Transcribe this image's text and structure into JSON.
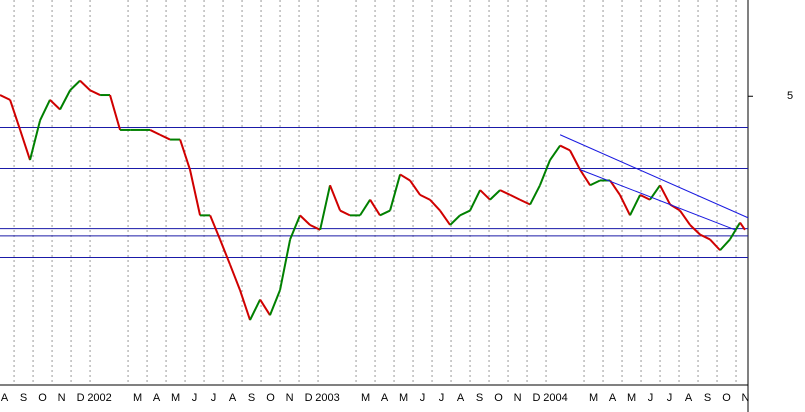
{
  "chart_data": {
    "type": "line",
    "x": [
      0.26,
      0.79,
      1.32,
      1.84,
      2.37,
      2.89,
      3.42,
      3.95,
      4.47,
      5,
      5.53,
      6.05,
      6.58,
      7.11,
      7.63,
      8.16,
      8.68,
      9.21,
      9.74,
      10.26,
      10.79,
      11.32,
      11.84,
      12.37,
      12.89,
      13.42,
      13.95,
      14.47,
      15,
      15.53,
      16.05,
      16.58,
      17.11,
      17.63,
      18.16,
      18.68,
      19.21,
      19.74,
      20.26,
      20.79,
      21.32,
      21.84,
      22.37,
      22.89,
      23.42,
      23.95,
      24.47,
      25,
      25.53,
      26.05,
      26.58,
      27.11,
      27.63,
      28.16,
      28.68,
      29.21,
      29.74,
      30.26,
      30.79,
      31.32,
      31.84,
      32.37,
      32.89,
      33.42,
      33.95,
      34.47,
      35,
      35.53,
      36.05,
      36.58,
      37.11,
      37.63,
      38.16,
      38.68,
      39.21,
      39.47
    ],
    "series": [
      {
        "up_color": "#008000",
        "down_color": "#d00000",
        "values": [
          5.01,
          4.97,
          4.72,
          4.47,
          4.8,
          4.97,
          4.89,
          5.05,
          5.13,
          5.05,
          5.01,
          5.01,
          4.72,
          4.72,
          4.72,
          4.72,
          4.68,
          4.64,
          4.64,
          4.39,
          4.01,
          4.01,
          3.81,
          3.6,
          3.39,
          3.14,
          3.31,
          3.18,
          3.39,
          3.81,
          4.01,
          3.93,
          3.89,
          4.26,
          4.05,
          4.01,
          4.01,
          4.14,
          4.01,
          4.05,
          4.35,
          4.3,
          4.18,
          4.14,
          4.05,
          3.93,
          4.01,
          4.05,
          4.22,
          4.14,
          4.22,
          4.18,
          4.14,
          4.1,
          4.26,
          4.47,
          4.59,
          4.55,
          4.39,
          4.26,
          4.3,
          4.3,
          4.18,
          4.01,
          4.18,
          4.14,
          4.26,
          4.1,
          4.05,
          3.93,
          3.85,
          3.81,
          3.72,
          3.81,
          3.95,
          3.89
        ]
      }
    ],
    "hlines": [
      4.74,
      4.4,
      3.9,
      3.84,
      3.66
    ],
    "hline_color": "#1a1aa8",
    "trendlines": [
      {
        "x": [
          29.74,
          39.63
        ],
        "y": [
          4.68,
          3.99
        ]
      },
      {
        "x": [
          30.79,
          38.95
        ],
        "y": [
          4.39,
          3.89
        ]
      }
    ],
    "trend_color": "#1a1ae0",
    "xlim": [
      0.26,
      39.63
    ],
    "ylim": [
      2.6,
      5.8
    ],
    "yticks": [
      5
    ],
    "xticks": [
      {
        "value": 0,
        "label": "A"
      },
      {
        "value": 1,
        "label": "S"
      },
      {
        "value": 2,
        "label": "O"
      },
      {
        "value": 3,
        "label": "N"
      },
      {
        "value": 4,
        "label": "D"
      },
      {
        "value": 5,
        "label": "2002"
      },
      {
        "value": 7,
        "label": "M"
      },
      {
        "value": 8,
        "label": "A"
      },
      {
        "value": 9,
        "label": "M"
      },
      {
        "value": 10,
        "label": "J"
      },
      {
        "value": 11,
        "label": "J"
      },
      {
        "value": 12,
        "label": "A"
      },
      {
        "value": 13,
        "label": "S"
      },
      {
        "value": 14,
        "label": "O"
      },
      {
        "value": 15,
        "label": "N"
      },
      {
        "value": 16,
        "label": "D"
      },
      {
        "value": 17,
        "label": "2003"
      },
      {
        "value": 19,
        "label": "M"
      },
      {
        "value": 20,
        "label": "A"
      },
      {
        "value": 21,
        "label": "M"
      },
      {
        "value": 22,
        "label": "J"
      },
      {
        "value": 23,
        "label": "J"
      },
      {
        "value": 24,
        "label": "A"
      },
      {
        "value": 25,
        "label": "S"
      },
      {
        "value": 26,
        "label": "O"
      },
      {
        "value": 27,
        "label": "N"
      },
      {
        "value": 28,
        "label": "D"
      },
      {
        "value": 29,
        "label": "2004"
      },
      {
        "value": 31,
        "label": "M"
      },
      {
        "value": 32,
        "label": "A"
      },
      {
        "value": 33,
        "label": "M"
      },
      {
        "value": 34,
        "label": "J"
      },
      {
        "value": 35,
        "label": "J"
      },
      {
        "value": 36,
        "label": "A"
      },
      {
        "value": 37,
        "label": "S"
      },
      {
        "value": 38,
        "label": "O"
      },
      {
        "value": 39,
        "label": "N"
      }
    ],
    "grid": true
  }
}
